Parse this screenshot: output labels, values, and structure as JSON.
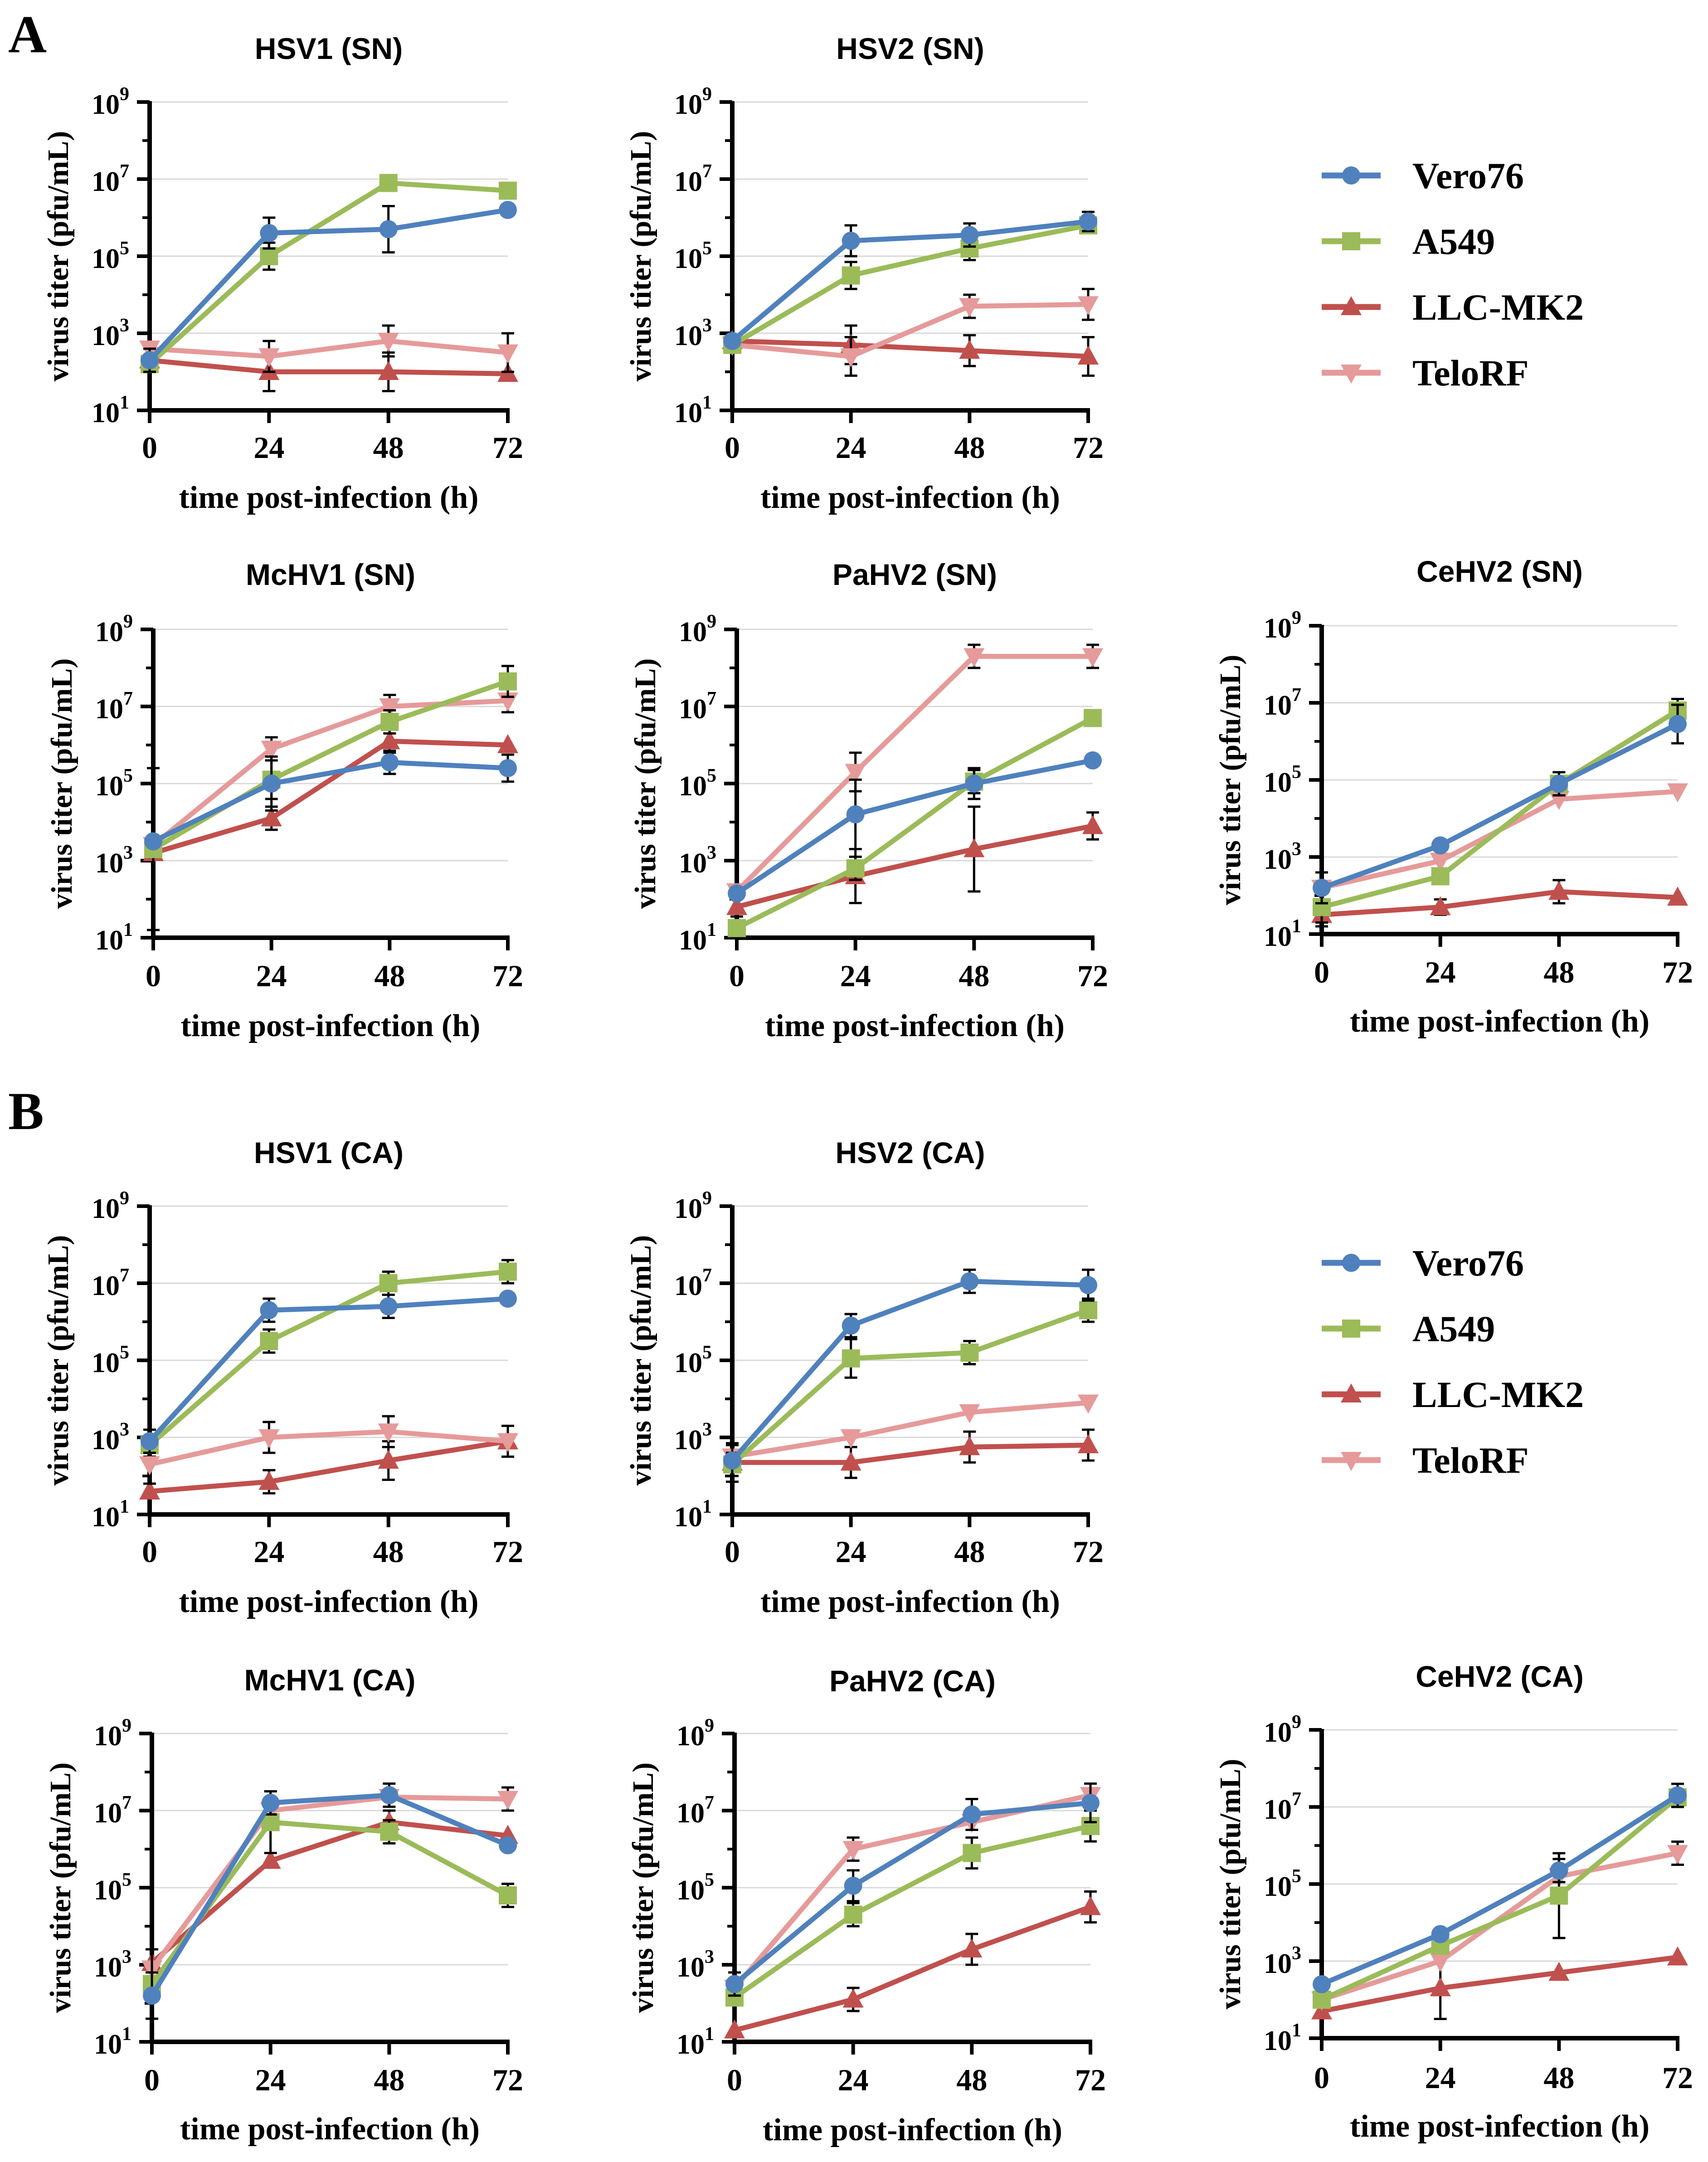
{
  "figure": {
    "panel_a_label": "A",
    "panel_b_label": "B"
  },
  "legend": [
    {
      "name": "Vero76",
      "color": "#4f81bd",
      "marker": "circle"
    },
    {
      "name": "A549",
      "color": "#9bbb59",
      "marker": "square"
    },
    {
      "name": "LLC-MK2",
      "color": "#c0504d",
      "marker": "triangle-up"
    },
    {
      "name": "TeloRF",
      "color": "#e69a9a",
      "marker": "triangle-down"
    }
  ],
  "axis_common": {
    "xlabel": "time post-infection (h)",
    "ylabel": "virus titer (pfu/mL)",
    "x_ticks": [
      "0",
      "24",
      "48",
      "72"
    ],
    "y_tick_base": "10",
    "y_tick_exponents": [
      "1",
      "3",
      "5",
      "7",
      "9"
    ]
  },
  "chart_data": [
    {
      "panel": "A",
      "type": "line",
      "title": "HSV1 (SN)",
      "x": [
        0,
        24,
        48,
        72
      ],
      "ylim_log10": [
        1,
        9
      ],
      "series": [
        {
          "name": "Vero76",
          "values": [
            2.3,
            5.6,
            5.7,
            6.2
          ],
          "err": [
            0.3,
            0.4,
            0.6,
            0
          ]
        },
        {
          "name": "A549",
          "values": [
            2.2,
            5.0,
            6.9,
            6.7
          ],
          "err": [
            0.2,
            0.35,
            0,
            0
          ]
        },
        {
          "name": "LLC-MK2",
          "values": [
            2.3,
            2.0,
            2.0,
            1.95
          ],
          "err": [
            0,
            0.5,
            0.5,
            0
          ]
        },
        {
          "name": "TeloRF",
          "values": [
            2.6,
            2.4,
            2.8,
            2.5
          ],
          "err": [
            0,
            0.4,
            0.4,
            0.5
          ]
        }
      ]
    },
    {
      "panel": "A",
      "type": "line",
      "title": "HSV2 (SN)",
      "x": [
        0,
        24,
        48,
        72
      ],
      "ylim_log10": [
        1,
        9
      ],
      "series": [
        {
          "name": "Vero76",
          "values": [
            2.8,
            5.4,
            5.55,
            5.9
          ],
          "err": [
            0,
            0.4,
            0.3,
            0.25
          ]
        },
        {
          "name": "A549",
          "values": [
            2.7,
            4.5,
            5.2,
            5.8
          ],
          "err": [
            0,
            0.35,
            0.3,
            0.2
          ]
        },
        {
          "name": "LLC-MK2",
          "values": [
            2.8,
            2.7,
            2.55,
            2.4
          ],
          "err": [
            0,
            0.5,
            0.4,
            0.5
          ]
        },
        {
          "name": "TeloRF",
          "values": [
            2.7,
            2.4,
            3.7,
            3.75
          ],
          "err": [
            0,
            0.5,
            0.3,
            0.4
          ]
        }
      ]
    },
    {
      "panel": "A",
      "type": "line",
      "title": "McHV1 (SN)",
      "x": [
        0,
        24,
        48,
        72
      ],
      "ylim_log10": [
        1,
        9
      ],
      "series": [
        {
          "name": "Vero76",
          "values": [
            3.5,
            5.0,
            5.55,
            5.4
          ],
          "err": [
            0,
            0.7,
            0.3,
            0.35
          ]
        },
        {
          "name": "A549",
          "values": [
            3.3,
            5.1,
            6.6,
            7.65
          ],
          "err": [
            2.1,
            0.5,
            0.3,
            0.4
          ]
        },
        {
          "name": "LLC-MK2",
          "values": [
            3.2,
            4.1,
            6.1,
            6.0
          ],
          "err": [
            0,
            0.3,
            0.3,
            0
          ]
        },
        {
          "name": "TeloRF",
          "values": [
            3.4,
            5.9,
            7.0,
            7.15
          ],
          "err": [
            0,
            0.3,
            0.3,
            0.3
          ]
        }
      ]
    },
    {
      "panel": "A",
      "type": "line",
      "title": "PaHV2 (SN)",
      "x": [
        0,
        24,
        48,
        72
      ],
      "ylim_log10": [
        1,
        9
      ],
      "series": [
        {
          "name": "Vero76",
          "values": [
            2.15,
            4.2,
            5.0,
            5.6
          ],
          "err": [
            0,
            0.9,
            0.4,
            0
          ]
        },
        {
          "name": "A549",
          "values": [
            1.25,
            2.8,
            5.05,
            6.7
          ],
          "err": [
            0.3,
            0.3,
            0.3,
            0
          ]
        },
        {
          "name": "LLC-MK2",
          "values": [
            1.8,
            2.6,
            3.3,
            3.9
          ],
          "err": [
            0.4,
            0.7,
            1.1,
            0.35
          ]
        },
        {
          "name": "TeloRF",
          "values": [
            2.2,
            5.3,
            8.3,
            8.3
          ],
          "err": [
            0,
            0.5,
            0.3,
            0.3
          ]
        }
      ]
    },
    {
      "panel": "A",
      "type": "line",
      "title": "CeHV2 (SN)",
      "x": [
        0,
        24,
        48,
        72
      ],
      "ylim_log10": [
        1,
        9
      ],
      "series": [
        {
          "name": "Vero76",
          "values": [
            2.2,
            3.3,
            4.9,
            6.45
          ],
          "err": [
            0.4,
            0,
            0.3,
            0.5
          ]
        },
        {
          "name": "A549",
          "values": [
            1.7,
            2.5,
            4.9,
            6.8
          ],
          "err": [
            0.4,
            0,
            0.3,
            0.3
          ]
        },
        {
          "name": "LLC-MK2",
          "values": [
            1.5,
            1.7,
            2.1,
            1.95
          ],
          "err": [
            0.3,
            0.2,
            0.3,
            0
          ]
        },
        {
          "name": "TeloRF",
          "values": [
            2.2,
            2.9,
            4.5,
            4.7
          ],
          "err": [
            0,
            0,
            0,
            0
          ]
        }
      ]
    },
    {
      "panel": "B",
      "type": "line",
      "title": "HSV1 (CA)",
      "x": [
        0,
        24,
        48,
        72
      ],
      "ylim_log10": [
        1,
        9
      ],
      "series": [
        {
          "name": "Vero76",
          "values": [
            2.9,
            6.3,
            6.4,
            6.6
          ],
          "err": [
            0.3,
            0.3,
            0.3,
            0
          ]
        },
        {
          "name": "A549",
          "values": [
            2.8,
            5.5,
            7.0,
            7.3
          ],
          "err": [
            0.2,
            0.3,
            0.3,
            0.3
          ]
        },
        {
          "name": "LLC-MK2",
          "values": [
            1.6,
            1.85,
            2.4,
            2.9
          ],
          "err": [
            0.9,
            0.3,
            0.5,
            0.4
          ]
        },
        {
          "name": "TeloRF",
          "values": [
            2.3,
            3.0,
            3.15,
            2.9
          ],
          "err": [
            0.5,
            0.4,
            0.4,
            0.4
          ]
        }
      ]
    },
    {
      "panel": "B",
      "type": "line",
      "title": "HSV2 (CA)",
      "x": [
        0,
        24,
        48,
        72
      ],
      "ylim_log10": [
        1,
        9
      ],
      "series": [
        {
          "name": "Vero76",
          "values": [
            2.4,
            5.9,
            7.05,
            6.95
          ],
          "err": [
            0.4,
            0.3,
            0.3,
            0.4
          ]
        },
        {
          "name": "A549",
          "values": [
            2.3,
            5.05,
            5.2,
            6.3
          ],
          "err": [
            0.3,
            0.5,
            0.3,
            0.3
          ]
        },
        {
          "name": "LLC-MK2",
          "values": [
            2.35,
            2.35,
            2.75,
            2.8
          ],
          "err": [
            0.5,
            0.4,
            0.4,
            0.4
          ]
        },
        {
          "name": "TeloRF",
          "values": [
            2.5,
            3.0,
            3.65,
            3.9
          ],
          "err": [
            0,
            0,
            0,
            0
          ]
        }
      ]
    },
    {
      "panel": "B",
      "type": "line",
      "title": "McHV1 (CA)",
      "x": [
        0,
        24,
        48,
        72
      ],
      "ylim_log10": [
        1,
        9
      ],
      "series": [
        {
          "name": "Vero76",
          "values": [
            2.2,
            7.2,
            7.4,
            6.1
          ],
          "err": [
            0.6,
            0.3,
            0.3,
            0
          ]
        },
        {
          "name": "A549",
          "values": [
            2.5,
            6.7,
            6.45,
            4.8
          ],
          "err": [
            0.9,
            0.8,
            0.3,
            0.3
          ]
        },
        {
          "name": "LLC-MK2",
          "values": [
            3.05,
            5.7,
            6.7,
            6.35
          ],
          "err": [
            0,
            0,
            0.3,
            0
          ]
        },
        {
          "name": "TeloRF",
          "values": [
            2.9,
            7.0,
            7.35,
            7.3
          ],
          "err": [
            0,
            0,
            0,
            0.3
          ]
        }
      ]
    },
    {
      "panel": "B",
      "type": "line",
      "title": "PaHV2 (CA)",
      "x": [
        0,
        24,
        48,
        72
      ],
      "ylim_log10": [
        1,
        9
      ],
      "series": [
        {
          "name": "Vero76",
          "values": [
            2.5,
            5.05,
            6.9,
            7.2
          ],
          "err": [
            0.3,
            0.4,
            0.4,
            0.5
          ]
        },
        {
          "name": "A549",
          "values": [
            2.15,
            4.3,
            5.9,
            6.6
          ],
          "err": [
            0,
            0.3,
            0.4,
            0.4
          ]
        },
        {
          "name": "LLC-MK2",
          "values": [
            1.3,
            2.1,
            3.4,
            4.5
          ],
          "err": [
            0,
            0.3,
            0.4,
            0.4
          ]
        },
        {
          "name": "TeloRF",
          "values": [
            2.4,
            6.0,
            6.7,
            7.4
          ],
          "err": [
            0,
            0.3,
            0,
            0.3
          ]
        }
      ]
    },
    {
      "panel": "B",
      "type": "line",
      "title": "CeHV2 (CA)",
      "x": [
        0,
        24,
        48,
        72
      ],
      "ylim_log10": [
        1,
        9
      ],
      "series": [
        {
          "name": "Vero76",
          "values": [
            2.4,
            3.7,
            5.35,
            7.3
          ],
          "err": [
            0,
            0,
            0.3,
            0.3
          ]
        },
        {
          "name": "A549",
          "values": [
            2.0,
            3.4,
            4.7,
            7.25
          ],
          "err": [
            0,
            0,
            1.1,
            0
          ]
        },
        {
          "name": "LLC-MK2",
          "values": [
            1.7,
            2.3,
            2.7,
            3.1
          ],
          "err": [
            0,
            0.8,
            0,
            0
          ]
        },
        {
          "name": "TeloRF",
          "values": [
            2.0,
            3.0,
            5.2,
            5.8
          ],
          "err": [
            0,
            0,
            0,
            0.3
          ]
        }
      ]
    }
  ]
}
